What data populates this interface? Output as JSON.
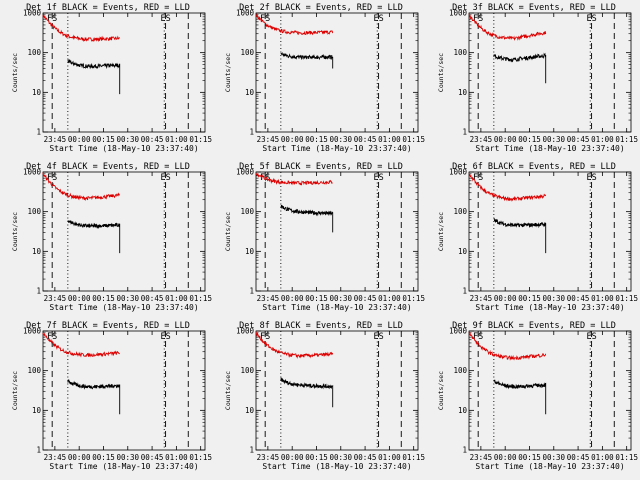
{
  "figure": {
    "background": "#f0f0f0",
    "line_colors": {
      "events": "#000000",
      "lld": "#dd0000"
    },
    "panels": [
      {
        "title": "Det 1f BLACK = Events, RED = LLD",
        "xlabel": "Start Time (18-May-10 23:37:40)",
        "ylabel": "Counts/sec"
      },
      {
        "title": "Det 2f BLACK = Events, RED = LLD",
        "xlabel": "Start Time (18-May-10 23:37:40)",
        "ylabel": "Counts/sec"
      },
      {
        "title": "Det 3f BLACK = Events, RED = LLD",
        "xlabel": "Start Time (18-May-10 23:37:40)",
        "ylabel": "Counts/sec"
      },
      {
        "title": "Det 4f BLACK = Events, RED = LLD",
        "xlabel": "Start Time (18-May-10 23:37:40)",
        "ylabel": "Counts/sec"
      },
      {
        "title": "Det 5f BLACK = Events, RED = LLD",
        "xlabel": "Start Time (18-May-10 23:37:40)",
        "ylabel": "Counts/sec"
      },
      {
        "title": "Det 6f BLACK = Events, RED = LLD",
        "xlabel": "Start Time (18-May-10 23:37:40)",
        "ylabel": "Counts/sec"
      },
      {
        "title": "Det 7f BLACK = Events, RED = LLD",
        "xlabel": "Start Time (18-May-10 23:37:40)",
        "ylabel": "Counts/sec"
      },
      {
        "title": "Det 8f BLACK = Events, RED = LLD",
        "xlabel": "Start Time (18-May-10 23:37:40)",
        "ylabel": "Counts/sec"
      },
      {
        "title": "Det 9f BLACK = Events, RED = LLD",
        "xlabel": "Start Time (18-May-10 23:37:40)",
        "ylabel": "Counts/sec"
      }
    ]
  },
  "chart_data": {
    "type": "line",
    "layout": "3x3 grid",
    "shared_axes": {
      "x_range_minutes_after_23:37:40": [
        0,
        100
      ],
      "x_tick_labels": [
        "23:45",
        "00:00",
        "00:15",
        "00:30",
        "00:45",
        "01:00",
        "01:15"
      ],
      "x_tick_times": [
        "23:45",
        "00:00",
        "00:15",
        "00:30",
        "00:45",
        "01:00",
        "01:15"
      ],
      "y_scale": "log",
      "ylim": [
        1,
        1000
      ],
      "y_tick_labels": [
        "1",
        "10",
        "100",
        "1000"
      ],
      "grid": false
    },
    "vertical_markers": [
      {
        "time": "23:43:20",
        "style": "dashed",
        "label": "FS"
      },
      {
        "time": "23:53:00",
        "style": "dotted"
      },
      {
        "time": "00:52:30",
        "style": "dotted"
      },
      {
        "time": "00:53:20",
        "style": "dashed",
        "label": "ES"
      },
      {
        "time": "01:07:20",
        "style": "dashed"
      }
    ],
    "panels": [
      {
        "detector": "1f",
        "lld": {
          "start_time": "23:37:40",
          "end_time": "00:25:00",
          "start_value": 900,
          "plateau_value": 210,
          "end_value": 230
        },
        "events": {
          "start_time": "23:53:00",
          "end_time": "00:25:00",
          "start_value": 62,
          "plateau_value": 44,
          "end_value": 48,
          "drop_value": 9
        }
      },
      {
        "detector": "2f",
        "lld": {
          "start_time": "23:37:40",
          "end_time": "00:25:00",
          "start_value": 900,
          "plateau_value": 310,
          "end_value": 330
        },
        "events": {
          "start_time": "23:53:00",
          "end_time": "00:25:00",
          "start_value": 95,
          "plateau_value": 75,
          "end_value": 78,
          "drop_value": 40
        }
      },
      {
        "detector": "3f",
        "lld": {
          "start_time": "23:37:40",
          "end_time": "00:25:00",
          "start_value": 900,
          "plateau_value": 220,
          "end_value": 320
        },
        "events": {
          "start_time": "23:53:00",
          "end_time": "00:25:00",
          "start_value": 85,
          "plateau_value": 65,
          "end_value": 85,
          "drop_value": 17
        }
      },
      {
        "detector": "4f",
        "lld": {
          "start_time": "23:37:40",
          "end_time": "00:25:00",
          "start_value": 900,
          "plateau_value": 210,
          "end_value": 260
        },
        "events": {
          "start_time": "23:53:00",
          "end_time": "00:25:00",
          "start_value": 60,
          "plateau_value": 42,
          "end_value": 46,
          "drop_value": 9
        }
      },
      {
        "detector": "5f",
        "lld": {
          "start_time": "23:37:40",
          "end_time": "00:25:00",
          "start_value": 950,
          "plateau_value": 520,
          "end_value": 560
        },
        "events": {
          "start_time": "23:53:00",
          "end_time": "00:25:00",
          "start_value": 140,
          "plateau_value": 95,
          "end_value": 90,
          "drop_value": 30
        }
      },
      {
        "detector": "6f",
        "lld": {
          "start_time": "23:37:40",
          "end_time": "00:25:00",
          "start_value": 900,
          "plateau_value": 200,
          "end_value": 250
        },
        "events": {
          "start_time": "23:53:00",
          "end_time": "00:25:00",
          "start_value": 62,
          "plateau_value": 44,
          "end_value": 48,
          "drop_value": 9
        }
      },
      {
        "detector": "7f",
        "lld": {
          "start_time": "23:37:40",
          "end_time": "00:25:00",
          "start_value": 900,
          "plateau_value": 240,
          "end_value": 280
        },
        "events": {
          "start_time": "23:53:00",
          "end_time": "00:25:00",
          "start_value": 55,
          "plateau_value": 38,
          "end_value": 42,
          "drop_value": 8
        }
      },
      {
        "detector": "8f",
        "lld": {
          "start_time": "23:37:40",
          "end_time": "00:25:00",
          "start_value": 900,
          "plateau_value": 230,
          "end_value": 260
        },
        "events": {
          "start_time": "23:53:00",
          "end_time": "00:25:00",
          "start_value": 60,
          "plateau_value": 42,
          "end_value": 40,
          "drop_value": 12
        }
      },
      {
        "detector": "9f",
        "lld": {
          "start_time": "23:37:40",
          "end_time": "00:25:00",
          "start_value": 900,
          "plateau_value": 200,
          "end_value": 250
        },
        "events": {
          "start_time": "23:53:00",
          "end_time": "00:25:00",
          "start_value": 55,
          "plateau_value": 38,
          "end_value": 44,
          "drop_value": 8
        }
      }
    ]
  }
}
